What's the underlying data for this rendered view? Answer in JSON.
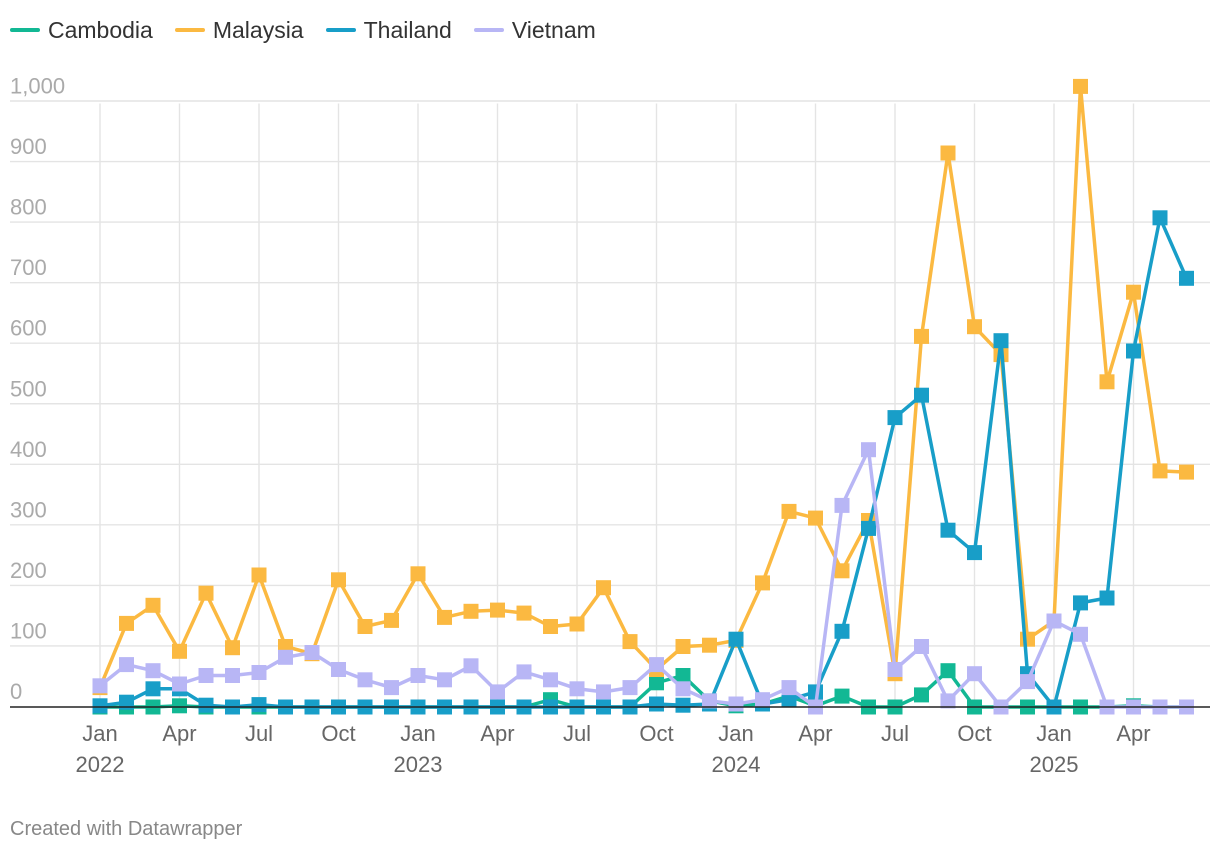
{
  "footer": "Created with Datawrapper",
  "chart_data": {
    "type": "line",
    "title": "",
    "xlabel": "",
    "ylabel": "",
    "ylim": [
      0,
      1000
    ],
    "y_ticks": [
      0,
      100,
      200,
      300,
      400,
      500,
      600,
      700,
      800,
      900,
      1000
    ],
    "y_tick_labels": [
      "0",
      "100",
      "200",
      "300",
      "400",
      "500",
      "600",
      "700",
      "800",
      "900",
      "1,000"
    ],
    "x_ticks": [
      {
        "month_index": 0,
        "label": "Jan",
        "year": "2022"
      },
      {
        "month_index": 3,
        "label": "Apr",
        "year": ""
      },
      {
        "month_index": 6,
        "label": "Jul",
        "year": ""
      },
      {
        "month_index": 9,
        "label": "Oct",
        "year": ""
      },
      {
        "month_index": 12,
        "label": "Jan",
        "year": "2023"
      },
      {
        "month_index": 15,
        "label": "Apr",
        "year": ""
      },
      {
        "month_index": 18,
        "label": "Jul",
        "year": ""
      },
      {
        "month_index": 21,
        "label": "Oct",
        "year": ""
      },
      {
        "month_index": 24,
        "label": "Jan",
        "year": "2024"
      },
      {
        "month_index": 27,
        "label": "Apr",
        "year": ""
      },
      {
        "month_index": 30,
        "label": "Jul",
        "year": ""
      },
      {
        "month_index": 33,
        "label": "Oct",
        "year": ""
      },
      {
        "month_index": 36,
        "label": "Jan",
        "year": "2025"
      },
      {
        "month_index": 39,
        "label": "Apr",
        "year": ""
      }
    ],
    "x_range": [
      "2022-01",
      "2025-06"
    ],
    "grid": true,
    "legend_position": "top-left",
    "series": [
      {
        "name": "Cambodia",
        "color": "#12b894",
        "values": [
          0,
          0,
          0,
          2,
          0,
          0,
          0,
          0,
          0,
          0,
          0,
          0,
          0,
          0,
          0,
          0,
          0,
          12,
          0,
          0,
          0,
          40,
          52,
          10,
          2,
          5,
          18,
          2,
          18,
          0,
          0,
          20,
          60,
          0,
          0,
          0,
          0,
          0,
          0,
          2,
          0,
          0
        ]
      },
      {
        "name": "Malaysia",
        "color": "#fbb941",
        "values": [
          32,
          138,
          168,
          92,
          188,
          98,
          218,
          100,
          88,
          210,
          133,
          143,
          220,
          148,
          158,
          160,
          155,
          133,
          137,
          197,
          108,
          62,
          100,
          102,
          110,
          205,
          323,
          312,
          225,
          308,
          55,
          612,
          915,
          628,
          582,
          112,
          142,
          1025,
          537,
          685,
          390,
          388
        ]
      },
      {
        "name": "Thailand",
        "color": "#189ec8",
        "values": [
          2,
          8,
          30,
          30,
          3,
          0,
          4,
          0,
          0,
          0,
          0,
          0,
          0,
          0,
          0,
          0,
          0,
          0,
          0,
          0,
          0,
          5,
          3,
          5,
          112,
          5,
          12,
          25,
          125,
          295,
          478,
          515,
          292,
          255,
          605,
          55,
          0,
          172,
          180,
          588,
          808,
          708
        ]
      },
      {
        "name": "Vietnam",
        "color": "#b8b6f5",
        "values": [
          35,
          70,
          60,
          38,
          52,
          52,
          57,
          82,
          90,
          62,
          45,
          32,
          52,
          45,
          68,
          25,
          58,
          45,
          30,
          25,
          32,
          70,
          30,
          10,
          5,
          12,
          32,
          0,
          333,
          425,
          62,
          100,
          10,
          55,
          0,
          42,
          142,
          120,
          0,
          0,
          0,
          0
        ]
      }
    ]
  }
}
